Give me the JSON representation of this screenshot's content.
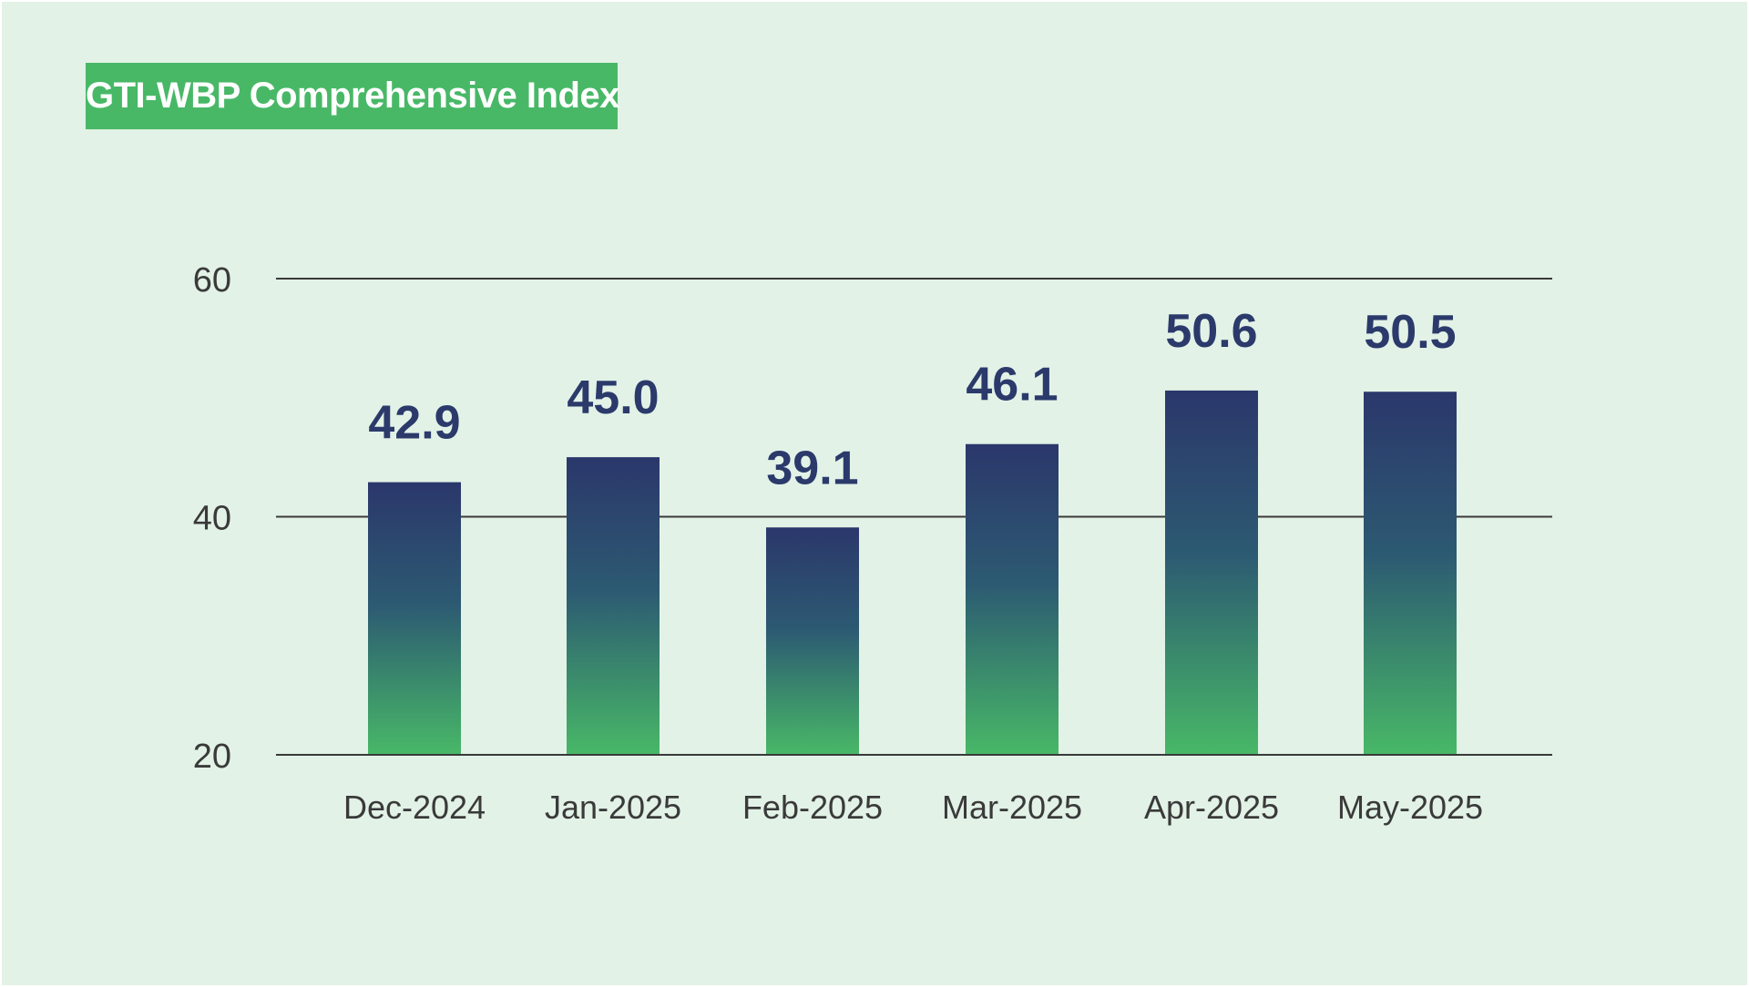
{
  "colors": {
    "background": "#e2f2e6",
    "title_background": "#48b867",
    "title_text": "#ffffff",
    "bar_top": "#2b376b",
    "bar_bottom": "#48b867",
    "gridline": "#3a3a3a",
    "data_label": "#2b3a6b"
  },
  "chart_data": {
    "type": "bar",
    "title": "GTI-WBP Comprehensive Index",
    "categories": [
      "Dec-2024",
      "Jan-2025",
      "Feb-2025",
      "Mar-2025",
      "Apr-2025",
      "May-2025"
    ],
    "values": [
      42.9,
      45.0,
      39.1,
      46.1,
      50.6,
      50.5
    ],
    "value_labels": [
      "42.9",
      "45.0",
      "39.1",
      "46.1",
      "50.6",
      "50.5"
    ],
    "xlabel": "",
    "ylabel": "",
    "ylim": [
      20,
      60
    ],
    "yticks": [
      20,
      40,
      60
    ],
    "ytick_labels": [
      "20",
      "40",
      "60"
    ],
    "grid": true,
    "legend": "none"
  }
}
